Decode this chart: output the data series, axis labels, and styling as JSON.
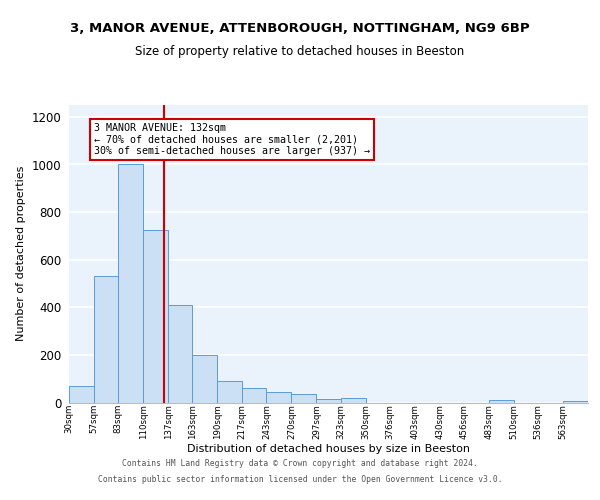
{
  "title_line1": "3, MANOR AVENUE, ATTENBOROUGH, NOTTINGHAM, NG9 6BP",
  "title_line2": "Size of property relative to detached houses in Beeston",
  "bar_edges": [
    30,
    57,
    83,
    110,
    137,
    163,
    190,
    217,
    243,
    270,
    297,
    323,
    350,
    376,
    403,
    430,
    456,
    483,
    510,
    536,
    563
  ],
  "bar_heights": [
    70,
    530,
    1000,
    725,
    410,
    200,
    90,
    60,
    45,
    35,
    15,
    20,
    0,
    0,
    0,
    0,
    0,
    10,
    0,
    0,
    5
  ],
  "bar_color": "#cce0f5",
  "bar_edge_color": "#5b9bd5",
  "property_value": 132,
  "vline_color": "#cc0000",
  "annotation_line1": "3 MANOR AVENUE: 132sqm",
  "annotation_line2": "← 70% of detached houses are smaller (2,201)",
  "annotation_line3": "30% of semi-detached houses are larger (937) →",
  "annotation_box_edge": "#cc0000",
  "annotation_box_face": "white",
  "xlabel": "Distribution of detached houses by size in Beeston",
  "ylabel": "Number of detached properties",
  "ylim": [
    0,
    1250
  ],
  "yticks": [
    0,
    200,
    400,
    600,
    800,
    1000,
    1200
  ],
  "footer_line1": "Contains HM Land Registry data © Crown copyright and database right 2024.",
  "footer_line2": "Contains public sector information licensed under the Open Government Licence v3.0.",
  "bg_color": "#eaf2fb",
  "grid_color": "#ffffff",
  "tick_labels": [
    "30sqm",
    "57sqm",
    "83sqm",
    "110sqm",
    "137sqm",
    "163sqm",
    "190sqm",
    "217sqm",
    "243sqm",
    "270sqm",
    "297sqm",
    "323sqm",
    "350sqm",
    "376sqm",
    "403sqm",
    "430sqm",
    "456sqm",
    "483sqm",
    "510sqm",
    "536sqm",
    "563sqm"
  ]
}
